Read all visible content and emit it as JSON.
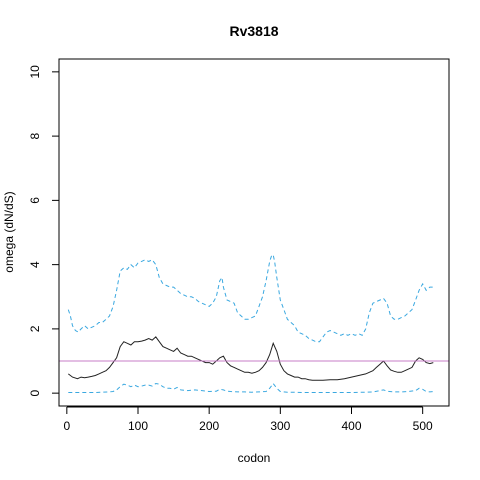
{
  "chart_data": {
    "type": "line",
    "title": "Rv3818",
    "xlabel": "codon",
    "ylabel": "omega (dN/dS)",
    "xlim": [
      -11,
      537
    ],
    "ylim": [
      -0.4,
      10.4
    ],
    "x_ticks": [
      0,
      100,
      200,
      300,
      400,
      500
    ],
    "y_ticks": [
      0,
      2,
      4,
      6,
      8,
      10
    ],
    "reference_line": {
      "y": 1,
      "color": "#c77cc7"
    },
    "series": [
      {
        "style": "dashed",
        "color": "#3aa8e0",
        "x": [
          2,
          5,
          8,
          12,
          16,
          20,
          25,
          30,
          35,
          40,
          45,
          50,
          55,
          60,
          65,
          70,
          75,
          80,
          85,
          90,
          95,
          100,
          105,
          110,
          115,
          120,
          125,
          130,
          135,
          140,
          145,
          150,
          155,
          160,
          165,
          170,
          175,
          180,
          185,
          190,
          195,
          200,
          205,
          210,
          215,
          218,
          220,
          225,
          230,
          235,
          240,
          245,
          250,
          255,
          260,
          265,
          270,
          275,
          280,
          285,
          288,
          290,
          292,
          295,
          300,
          305,
          310,
          315,
          320,
          325,
          330,
          335,
          340,
          345,
          350,
          355,
          360,
          365,
          370,
          375,
          380,
          385,
          390,
          395,
          400,
          405,
          410,
          415,
          420,
          425,
          430,
          435,
          440,
          445,
          450,
          455,
          460,
          465,
          470,
          475,
          480,
          485,
          490,
          495,
          500,
          505,
          510,
          515
        ],
        "values": [
          2.6,
          2.4,
          2.1,
          1.95,
          1.9,
          2.0,
          2.1,
          2.0,
          2.05,
          2.1,
          2.2,
          2.2,
          2.3,
          2.4,
          2.7,
          3.2,
          3.8,
          3.9,
          3.85,
          4.0,
          3.9,
          4.05,
          4.1,
          4.15,
          4.1,
          4.15,
          4.0,
          3.6,
          3.4,
          3.35,
          3.3,
          3.3,
          3.2,
          3.1,
          3.05,
          3.0,
          3.0,
          2.95,
          2.85,
          2.8,
          2.75,
          2.7,
          2.8,
          3.0,
          3.5,
          3.6,
          3.3,
          2.9,
          2.85,
          2.8,
          2.5,
          2.4,
          2.3,
          2.3,
          2.35,
          2.4,
          2.7,
          3.0,
          3.5,
          4.1,
          4.3,
          4.3,
          4.1,
          3.6,
          2.9,
          2.6,
          2.3,
          2.2,
          2.1,
          1.9,
          1.85,
          1.8,
          1.7,
          1.65,
          1.6,
          1.6,
          1.75,
          1.9,
          1.95,
          1.9,
          1.85,
          1.8,
          1.85,
          1.8,
          1.85,
          1.8,
          1.85,
          1.8,
          2.0,
          2.5,
          2.8,
          2.85,
          2.9,
          2.95,
          2.8,
          2.4,
          2.3,
          2.3,
          2.35,
          2.4,
          2.5,
          2.6,
          2.9,
          3.2,
          3.4,
          3.2,
          3.3,
          3.3
        ]
      },
      {
        "style": "solid",
        "color": "#222222",
        "x": [
          2,
          8,
          15,
          20,
          25,
          30,
          35,
          40,
          45,
          50,
          55,
          60,
          65,
          70,
          75,
          80,
          85,
          90,
          95,
          100,
          105,
          110,
          115,
          120,
          125,
          130,
          135,
          140,
          145,
          150,
          155,
          160,
          165,
          170,
          175,
          180,
          185,
          190,
          195,
          200,
          205,
          210,
          215,
          220,
          225,
          230,
          235,
          240,
          245,
          250,
          255,
          260,
          265,
          270,
          275,
          280,
          285,
          290,
          295,
          300,
          305,
          310,
          315,
          320,
          325,
          330,
          335,
          340,
          345,
          350,
          360,
          370,
          380,
          390,
          400,
          410,
          420,
          425,
          430,
          435,
          440,
          445,
          450,
          455,
          460,
          465,
          470,
          475,
          480,
          485,
          490,
          495,
          500,
          505,
          510,
          515
        ],
        "values": [
          0.6,
          0.5,
          0.45,
          0.5,
          0.48,
          0.5,
          0.52,
          0.55,
          0.6,
          0.65,
          0.7,
          0.8,
          0.95,
          1.1,
          1.45,
          1.6,
          1.55,
          1.5,
          1.6,
          1.6,
          1.62,
          1.65,
          1.7,
          1.65,
          1.75,
          1.6,
          1.45,
          1.4,
          1.35,
          1.3,
          1.4,
          1.25,
          1.2,
          1.15,
          1.15,
          1.1,
          1.05,
          1.0,
          0.95,
          0.95,
          0.9,
          1.0,
          1.1,
          1.15,
          0.95,
          0.85,
          0.8,
          0.75,
          0.7,
          0.65,
          0.65,
          0.62,
          0.65,
          0.7,
          0.8,
          0.95,
          1.2,
          1.55,
          1.3,
          0.9,
          0.7,
          0.6,
          0.55,
          0.5,
          0.5,
          0.45,
          0.45,
          0.42,
          0.4,
          0.4,
          0.4,
          0.42,
          0.42,
          0.45,
          0.5,
          0.55,
          0.6,
          0.65,
          0.7,
          0.8,
          0.9,
          1.0,
          0.85,
          0.72,
          0.68,
          0.65,
          0.65,
          0.7,
          0.75,
          0.8,
          1.0,
          1.1,
          1.05,
          0.95,
          0.92,
          0.95
        ]
      },
      {
        "style": "dashed",
        "color": "#3aa8e0",
        "x": [
          2,
          10,
          20,
          30,
          40,
          50,
          60,
          65,
          70,
          75,
          80,
          85,
          90,
          95,
          100,
          105,
          110,
          115,
          120,
          125,
          130,
          135,
          140,
          145,
          150,
          155,
          160,
          170,
          180,
          190,
          200,
          210,
          215,
          220,
          225,
          230,
          240,
          250,
          260,
          270,
          280,
          285,
          290,
          295,
          300,
          310,
          320,
          330,
          340,
          350,
          360,
          380,
          400,
          420,
          430,
          440,
          445,
          450,
          460,
          470,
          480,
          490,
          495,
          500,
          505,
          510,
          515
        ],
        "values": [
          0.02,
          0.02,
          0.02,
          0.02,
          0.02,
          0.03,
          0.04,
          0.05,
          0.1,
          0.2,
          0.28,
          0.25,
          0.2,
          0.25,
          0.2,
          0.22,
          0.25,
          0.25,
          0.22,
          0.3,
          0.28,
          0.2,
          0.15,
          0.15,
          0.12,
          0.18,
          0.1,
          0.08,
          0.1,
          0.08,
          0.05,
          0.06,
          0.12,
          0.1,
          0.06,
          0.05,
          0.04,
          0.04,
          0.03,
          0.04,
          0.05,
          0.15,
          0.3,
          0.15,
          0.05,
          0.03,
          0.03,
          0.02,
          0.02,
          0.02,
          0.02,
          0.02,
          0.02,
          0.03,
          0.04,
          0.08,
          0.1,
          0.06,
          0.04,
          0.04,
          0.05,
          0.08,
          0.15,
          0.12,
          0.05,
          0.04,
          0.05
        ]
      }
    ]
  }
}
